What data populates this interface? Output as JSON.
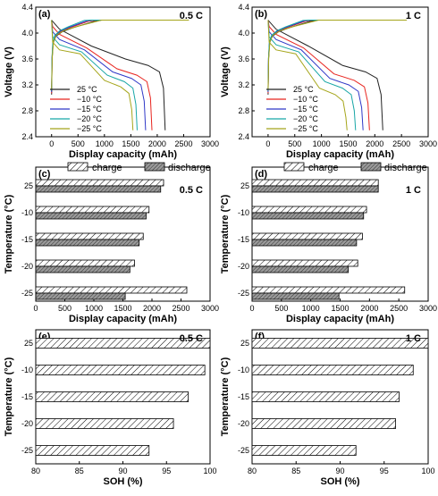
{
  "colors": {
    "t25": "#222222",
    "tm10": "#e8251f",
    "tm15": "#2f38c7",
    "tm20": "#18a6a6",
    "tm25": "#a5a51a"
  },
  "chart_data": [
    {
      "panel": "(a)",
      "rate": "0.5 C",
      "type": "line",
      "xlabel": "Display capacity (mAh)",
      "ylabel": "Voltage (V)",
      "xlim": [
        -300,
        3000
      ],
      "ylim": [
        2.4,
        4.4
      ],
      "xticks": [
        "0",
        "500",
        "1000",
        "1500",
        "2000",
        "2500",
        "3000"
      ],
      "yticks": [
        "2.4",
        "2.8",
        "3.2",
        "3.6",
        "4.0",
        "4.4"
      ],
      "series": [
        {
          "name": "25 °C",
          "color": "t25",
          "charge_capacity": 2200,
          "discharge_capacity": 2150,
          "plateau": 3.45
        },
        {
          "name": "−10 °C",
          "color": "tm10",
          "charge_capacity": 1950,
          "discharge_capacity": 1900,
          "plateau": 3.3
        },
        {
          "name": "−15 °C",
          "color": "tm15",
          "charge_capacity": 1850,
          "discharge_capacity": 1780,
          "plateau": 3.25
        },
        {
          "name": "−20 °C",
          "color": "tm20",
          "charge_capacity": 1700,
          "discharge_capacity": 1620,
          "plateau": 3.2
        },
        {
          "name": "−25 °C",
          "color": "tm25",
          "charge_capacity": 2600,
          "discharge_capacity": 1540,
          "plateau": 3.12
        }
      ]
    },
    {
      "panel": "(b)",
      "rate": "1 C",
      "type": "line",
      "xlabel": "Display capacity (mAh)",
      "ylabel": "Voltage (V)",
      "xlim": [
        -300,
        3000
      ],
      "ylim": [
        2.4,
        4.4
      ],
      "xticks": [
        "0",
        "500",
        "1000",
        "1500",
        "2000",
        "2500",
        "3000"
      ],
      "yticks": [
        "2.4",
        "2.8",
        "3.2",
        "3.6",
        "4.0",
        "4.4"
      ],
      "series": [
        {
          "name": "25 °C",
          "color": "t25",
          "charge_capacity": 2150,
          "discharge_capacity": 2150,
          "plateau": 3.35
        },
        {
          "name": "−10 °C",
          "color": "tm10",
          "charge_capacity": 1950,
          "discharge_capacity": 1900,
          "plateau": 3.22
        },
        {
          "name": "−15 °C",
          "color": "tm15",
          "charge_capacity": 1880,
          "discharge_capacity": 1780,
          "plateau": 3.15
        },
        {
          "name": "−20 °C",
          "color": "tm20",
          "charge_capacity": 1800,
          "discharge_capacity": 1640,
          "plateau": 3.1
        },
        {
          "name": "−25 °C",
          "color": "tm25",
          "charge_capacity": 2600,
          "discharge_capacity": 1480,
          "plateau": 3.0
        }
      ]
    },
    {
      "panel": "(c)",
      "rate": "0.5 C",
      "type": "bar",
      "xlabel": "Display capacity (mAh)",
      "ylabel": "Temperature (°C)",
      "xlim": [
        0,
        3000
      ],
      "xticks": [
        "0",
        "500",
        "1000",
        "1500",
        "2000",
        "2500",
        "3000"
      ],
      "categories": [
        "25",
        "-10",
        "-15",
        "-20",
        "-25"
      ],
      "legend": [
        "charge",
        "discharge"
      ],
      "series": [
        {
          "name": "charge",
          "values": [
            2200,
            1950,
            1850,
            1700,
            2600
          ]
        },
        {
          "name": "discharge",
          "values": [
            2150,
            1900,
            1780,
            1620,
            1540
          ]
        }
      ]
    },
    {
      "panel": "(d)",
      "rate": "1 C",
      "type": "bar",
      "xlabel": "Display capacity (mAh)",
      "ylabel": "Temperature (°C)",
      "xlim": [
        0,
        3000
      ],
      "xticks": [
        "0",
        "500",
        "1000",
        "1500",
        "2000",
        "2500",
        "3000"
      ],
      "categories": [
        "25",
        "-10",
        "-15",
        "-20",
        "-25"
      ],
      "legend": [
        "charge",
        "discharge"
      ],
      "series": [
        {
          "name": "charge",
          "values": [
            2150,
            1950,
            1880,
            1800,
            2600
          ]
        },
        {
          "name": "discharge",
          "values": [
            2150,
            1900,
            1780,
            1640,
            1480
          ]
        }
      ]
    },
    {
      "panel": "(e)",
      "rate": "0.5 C",
      "type": "bar",
      "xlabel": "SOH (%)",
      "ylabel": "Temperature (°C)",
      "xlim": [
        80,
        100
      ],
      "xticks": [
        "80",
        "85",
        "90",
        "95",
        "100"
      ],
      "categories": [
        "25",
        "-10",
        "-15",
        "-20",
        "-25"
      ],
      "series": [
        {
          "name": "SOH",
          "values": [
            100,
            99.4,
            97.5,
            95.8,
            93.0
          ]
        }
      ]
    },
    {
      "panel": "(f)",
      "rate": "1 C",
      "type": "bar",
      "xlabel": "SOH (%)",
      "ylabel": "Temperature (°C)",
      "xlim": [
        80,
        100
      ],
      "xticks": [
        "80",
        "85",
        "90",
        "95",
        "100"
      ],
      "categories": [
        "25",
        "-10",
        "-15",
        "-20",
        "-25"
      ],
      "series": [
        {
          "name": "SOH",
          "values": [
            100,
            98.3,
            96.7,
            96.3,
            91.8
          ]
        }
      ]
    }
  ]
}
